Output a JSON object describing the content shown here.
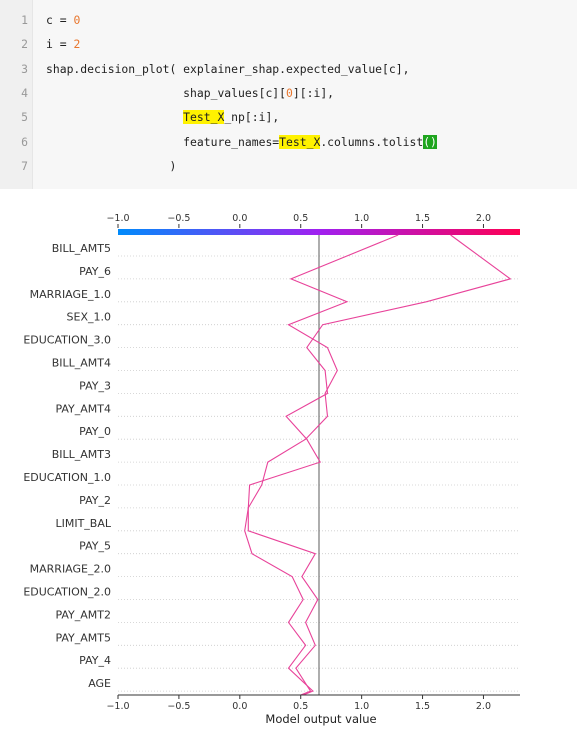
{
  "code_cell": {
    "lines": [
      {
        "no": "1",
        "segments": [
          {
            "t": "c = ",
            "c": ""
          },
          {
            "t": "0",
            "c": "num"
          }
        ]
      },
      {
        "no": "2",
        "segments": [
          {
            "t": "i = ",
            "c": ""
          },
          {
            "t": "2",
            "c": "num"
          }
        ]
      },
      {
        "no": "3",
        "segments": [
          {
            "t": "shap.decision_plot( explainer_shap.expected_value[c],",
            "c": ""
          }
        ]
      },
      {
        "no": "4",
        "segments": [
          {
            "t": "                    shap_values[c][",
            "c": ""
          },
          {
            "t": "0",
            "c": "num"
          },
          {
            "t": "][:i],",
            "c": ""
          }
        ]
      },
      {
        "no": "5",
        "segments": [
          {
            "t": "                    ",
            "c": ""
          },
          {
            "t": "Test_X",
            "c": "hl"
          },
          {
            "t": "_np[:i],",
            "c": ""
          }
        ]
      },
      {
        "no": "6",
        "segments": [
          {
            "t": "                    feature_names=",
            "c": ""
          },
          {
            "t": "Test_X",
            "c": "hl"
          },
          {
            "t": ".columns.tolist",
            "c": ""
          },
          {
            "t": "()",
            "c": "bracket"
          }
        ]
      },
      {
        "no": "7",
        "segments": [
          {
            "t": "                  )",
            "c": ""
          }
        ]
      }
    ]
  },
  "chart_data": {
    "type": "line",
    "subtype": "shap-decision-plot",
    "xlabel": "Model output value",
    "xlim": [
      -1.0,
      2.3
    ],
    "x_ticks": [
      -1.0,
      -0.5,
      0.0,
      0.5,
      1.0,
      1.5,
      2.0
    ],
    "x_tick_labels": [
      "−1.0",
      "−0.5",
      "0.0",
      "0.5",
      "1.0",
      "1.5",
      "2.0"
    ],
    "base_value": 0.65,
    "colorbar": {
      "colors": [
        "#008bfb",
        "#a020f0",
        "#ff0052"
      ]
    },
    "features": [
      "BILL_AMT5",
      "PAY_6",
      "MARRIAGE_1.0",
      "SEX_1.0",
      "EDUCATION_3.0",
      "BILL_AMT4",
      "PAY_3",
      "PAY_AMT4",
      "PAY_0",
      "BILL_AMT3",
      "EDUCATION_1.0",
      "PAY_2",
      "LIMIT_BAL",
      "PAY_5",
      "MARRIAGE_2.0",
      "EDUCATION_2.0",
      "PAY_AMT2",
      "PAY_AMT5",
      "PAY_4",
      "AGE"
    ],
    "series": [
      {
        "values": [
          0.5,
          0.58,
          0.46,
          0.62,
          0.54,
          0.64,
          0.51,
          0.62,
          0.07,
          0.07,
          0.18,
          0.23,
          0.54,
          0.72,
          0.7,
          0.8,
          0.72,
          0.4,
          0.88,
          0.42,
          1.3
        ]
      },
      {
        "values": [
          0.52,
          0.6,
          0.4,
          0.54,
          0.4,
          0.52,
          0.43,
          0.1,
          0.04,
          0.07,
          0.08,
          0.66,
          0.55,
          0.38,
          0.72,
          0.7,
          0.55,
          0.68,
          1.53,
          2.22,
          1.73
        ]
      }
    ],
    "line_color": "#e8439a",
    "base_line_color": "#777777"
  }
}
